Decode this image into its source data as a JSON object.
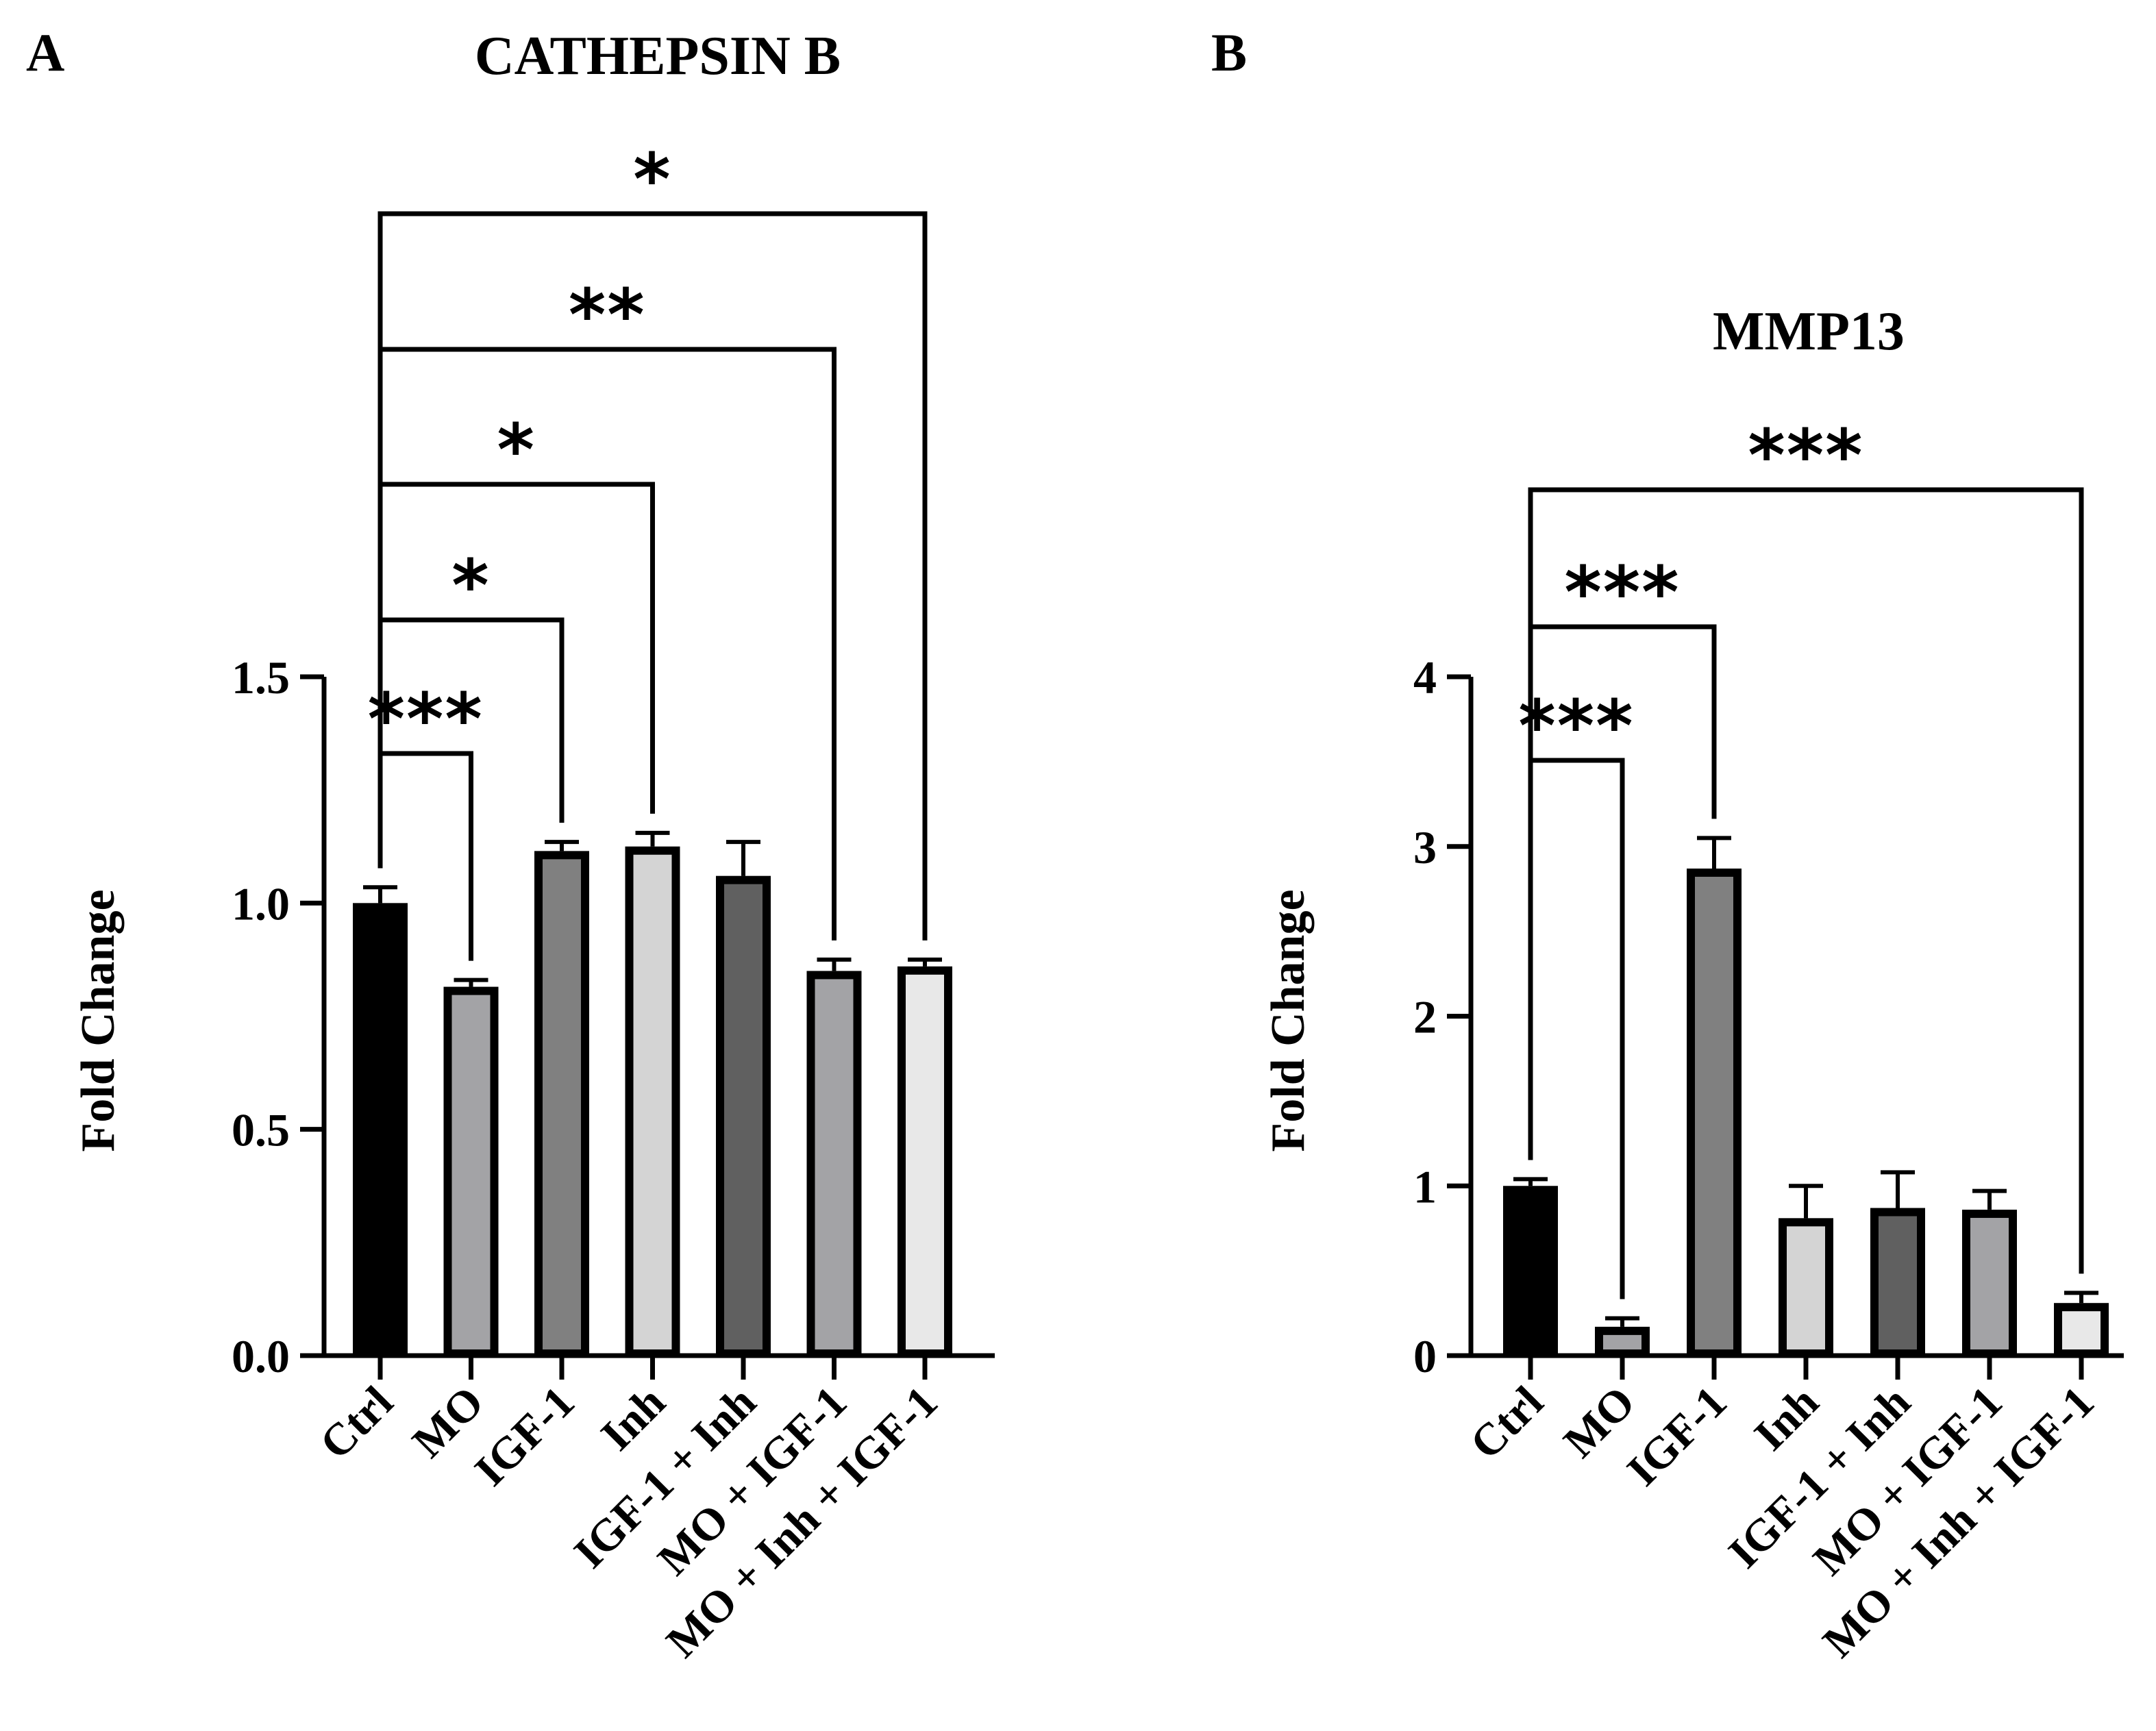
{
  "panels": [
    {
      "letter": "A",
      "chart_data": {
        "type": "bar",
        "title": "CATHEPSIN B",
        "ylabel": "Fold Change",
        "xlabel": "",
        "ylim": [
          0,
          1.5
        ],
        "yticks": [
          0.0,
          0.5,
          1.0,
          1.5
        ],
        "ytick_labels": [
          "0.0",
          "0.5",
          "1.0",
          "1.5"
        ],
        "categories": [
          "Ctrl",
          "MO",
          "IGF-1",
          "Inh",
          "IGF-1 + Inh",
          "MO + IGF-1",
          "MO + Inh + IGF-1"
        ],
        "values": [
          1.0,
          0.815,
          1.115,
          1.125,
          1.06,
          0.85,
          0.86
        ],
        "errors": [
          0.035,
          0.015,
          0.02,
          0.03,
          0.075,
          0.025,
          0.015
        ],
        "bar_colors": [
          "#000000",
          "#a3a3a6",
          "#808080",
          "#d4d4d4",
          "#606060",
          "#a3a3a6",
          "#e8e8e8"
        ],
        "significance": [
          {
            "from": 0,
            "to": 1,
            "label": "***"
          },
          {
            "from": 0,
            "to": 2,
            "label": "*"
          },
          {
            "from": 0,
            "to": 3,
            "label": "*"
          },
          {
            "from": 0,
            "to": 5,
            "label": "**"
          },
          {
            "from": 0,
            "to": 6,
            "label": "*"
          }
        ]
      }
    },
    {
      "letter": "B",
      "chart_data": {
        "type": "bar",
        "title": "MMP13",
        "ylabel": "Fold Change",
        "xlabel": "",
        "ylim": [
          0,
          4
        ],
        "yticks": [
          0,
          1,
          2,
          3,
          4
        ],
        "ytick_labels": [
          "0",
          "1",
          "2",
          "3",
          "4"
        ],
        "categories": [
          "Ctrl",
          "MO",
          "IGF-1",
          "Inh",
          "IGF-1 + Inh",
          "MO + IGF-1",
          "MO + Inh + IGF-1"
        ],
        "values": [
          1.0,
          0.17,
          2.87,
          0.81,
          0.87,
          0.86,
          0.31
        ],
        "errors": [
          0.04,
          0.05,
          0.18,
          0.19,
          0.21,
          0.11,
          0.06
        ],
        "bar_colors": [
          "#000000",
          "#a3a3a6",
          "#808080",
          "#d4d4d4",
          "#606060",
          "#a3a3a6",
          "#e8e8e8"
        ],
        "significance": [
          {
            "from": 0,
            "to": 1,
            "label": "***"
          },
          {
            "from": 0,
            "to": 2,
            "label": "***"
          },
          {
            "from": 0,
            "to": 6,
            "label": "***"
          }
        ]
      }
    }
  ]
}
